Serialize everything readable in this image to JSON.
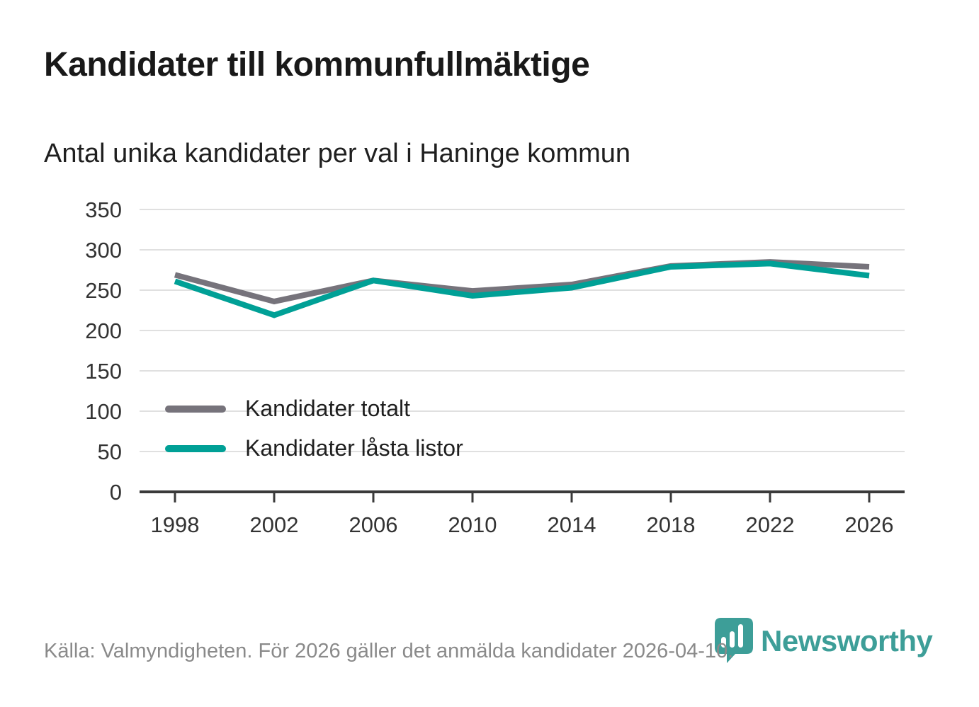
{
  "title": "Kandidater till kommunfullmäktige",
  "subtitle": "Antal unika kandidater per val i Haninge kommun",
  "footer": {
    "source_note": "Källa: Valmyndigheten. För 2026 gäller det anmälda kandidater 2026-04-10.",
    "brand_name": "Newsworthy"
  },
  "colors": {
    "series_total": "#76737b",
    "series_locked": "#00a096",
    "grid": "#e0e0e0",
    "axis": "#3a3a3a",
    "tick_label": "#333333",
    "brand_teal": "#3d9e98",
    "footer_text": "#8a8a8a"
  },
  "chart_data": {
    "type": "line",
    "title": "Kandidater till kommunfullmäktige",
    "subtitle": "Antal unika kandidater per val i Haninge kommun",
    "categories": [
      "1998",
      "2002",
      "2006",
      "2010",
      "2014",
      "2018",
      "2022",
      "2026"
    ],
    "series": [
      {
        "name": "Kandidater totalt",
        "color": "#76737b",
        "values": [
          269,
          236,
          262,
          249,
          257,
          280,
          285,
          279
        ]
      },
      {
        "name": "Kandidater låsta listor",
        "color": "#00a096",
        "values": [
          261,
          219,
          262,
          243,
          253,
          279,
          283,
          268
        ]
      }
    ],
    "xlabel": "",
    "ylabel": "",
    "ylim": [
      0,
      350
    ],
    "yticks": [
      0,
      50,
      100,
      150,
      200,
      250,
      300,
      350
    ],
    "grid": true,
    "legend_position": "inside-left"
  }
}
